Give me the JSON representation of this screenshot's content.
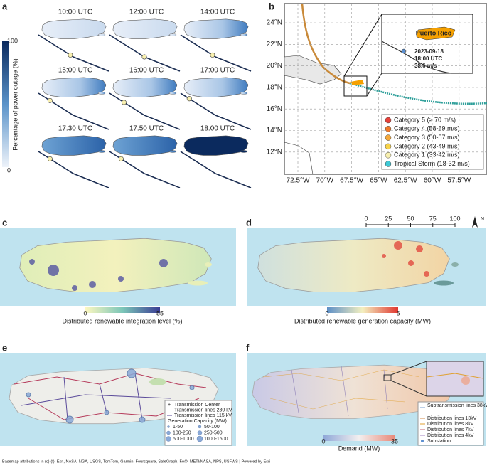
{
  "panel_a": {
    "label": "a",
    "times": [
      "10:00 UTC",
      "12:00 UTC",
      "14:00 UTC",
      "15:00 UTC",
      "16:00 UTC",
      "17:00 UTC",
      "17:30 UTC",
      "17:50 UTC",
      "18:00 UTC"
    ],
    "colorbar": {
      "label": "Percentage of power outage (%)",
      "ticks": [
        0,
        100
      ]
    }
  },
  "panel_b": {
    "label": "b",
    "lat_labels": [
      "24°N",
      "22°N",
      "20°N",
      "18°N",
      "16°N",
      "14°N",
      "12°N"
    ],
    "lon_labels": [
      "72.5°W",
      "70°W",
      "67.5°W",
      "65°W",
      "62.5°W",
      "60°W",
      "57.5°W"
    ],
    "inset": {
      "title": "Puerto Rico",
      "date": "2023-09-18",
      "time": "18:00 UTC",
      "wind": "38.6 m/s"
    },
    "legend": [
      {
        "name": "Category 5 (≥ 70 m/s)",
        "color": "#e8413a"
      },
      {
        "name": "Category 4 (58-69 m/s)",
        "color": "#f07a2c"
      },
      {
        "name": "Category 3 (50-57 m/s)",
        "color": "#f5a93b"
      },
      {
        "name": "Category 2 (43-49 m/s)",
        "color": "#f7d34a"
      },
      {
        "name": "Category 1 (33-42 m/s)",
        "color": "#f8f0b0"
      },
      {
        "name": "Tropical Storm (18-32 m/s)",
        "color": "#3ec9d6"
      }
    ]
  },
  "panel_c": {
    "label": "c",
    "colorbar": {
      "label": "Distributed renewable integration level (%)",
      "ticks": [
        0,
        55
      ]
    }
  },
  "panel_d": {
    "label": "d",
    "colorbar": {
      "label": "Distributed renewable generation capacity (MW)",
      "ticks": [
        0,
        6
      ]
    },
    "scale_bar": [
      0,
      25,
      50,
      75,
      100
    ],
    "north": "N"
  },
  "panel_e": {
    "label": "e",
    "legend": {
      "items": [
        "Transmission Center",
        "Transmission lines 230 kV",
        "Transmission lines 115 kV"
      ],
      "size_title": "Generation Capacity (MW)",
      "sizes": [
        "1-50",
        "50-100",
        "100-250",
        "250-500",
        "500-1000",
        "1000-1500"
      ]
    }
  },
  "panel_f": {
    "label": "f",
    "colorbar": {
      "label": "Demand (MW)",
      "ticks": [
        0,
        35
      ]
    },
    "legend": [
      "Subtransmission lines 38kV",
      "Distribution lines 13kV",
      "Distribution lines 8kV",
      "Distribution lines 7kV",
      "Distribution lines 4kV",
      "Substation"
    ]
  },
  "footer": "Basemap attributions in (c)-(f): Esri, NASA, NGA, USGS, TomTom, Garmin, Foursquare, SafeGraph, FAO, METI/NASA, NPS, USFWS | Powered by Esri"
}
